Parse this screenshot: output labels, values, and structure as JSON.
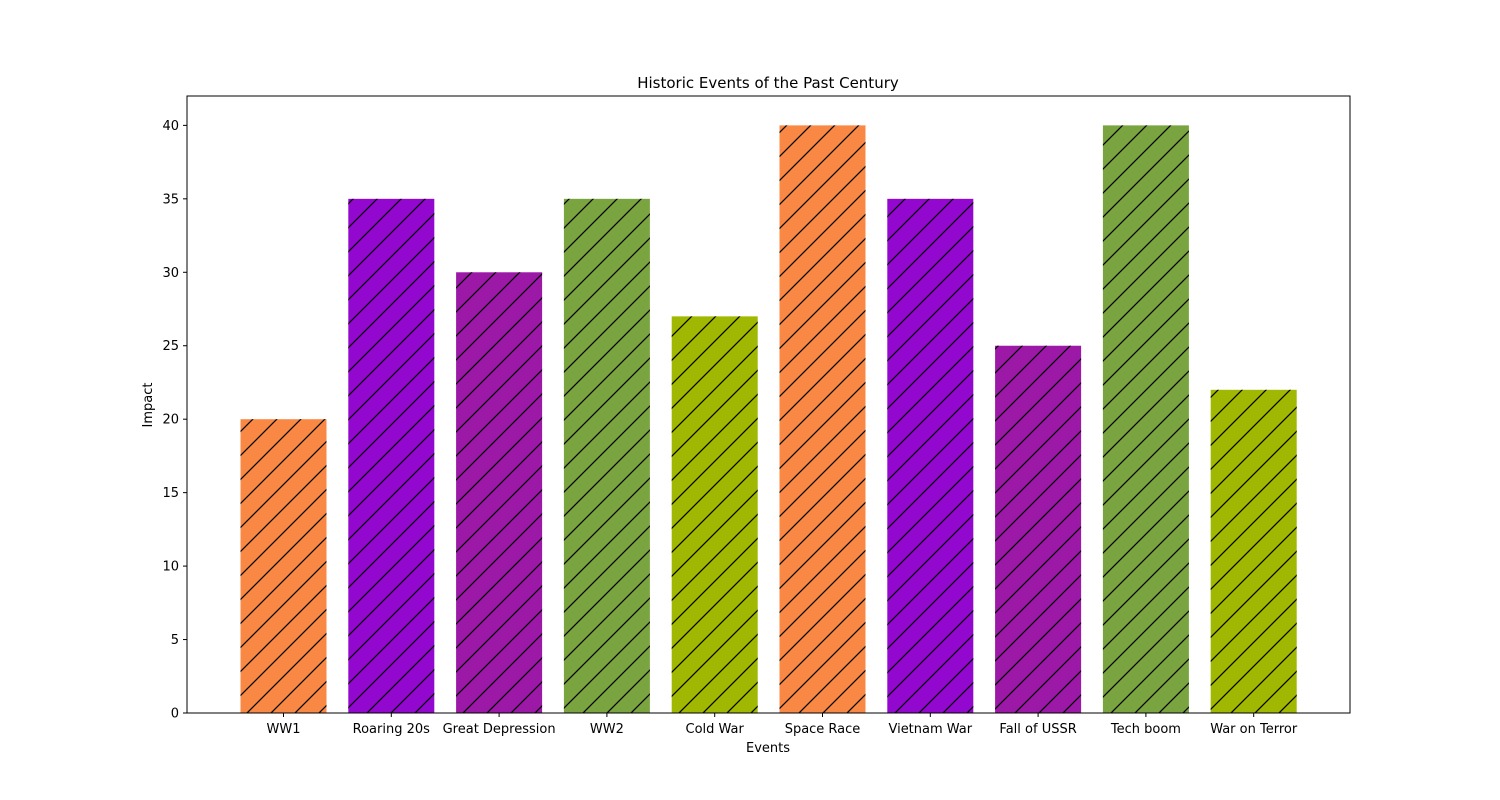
{
  "chart_data": {
    "type": "bar",
    "title": "Historic Events of the Past Century",
    "xlabel": "Events",
    "ylabel": "Impact",
    "ylim": [
      0,
      42
    ],
    "yticks": [
      0,
      5,
      10,
      15,
      20,
      25,
      30,
      35,
      40
    ],
    "grid": false,
    "categories": [
      "WW1",
      "Roaring 20s",
      "Great Depression",
      "WW2",
      "Cold War",
      "Space Race",
      "Vietnam War",
      "Fall of USSR",
      "Tech boom",
      "War on Terror"
    ],
    "values": [
      20,
      35,
      30,
      35,
      27,
      40,
      35,
      25,
      40,
      22
    ],
    "colors": [
      "#fa8845",
      "#9308cf",
      "#9c18a6",
      "#7aa43f",
      "#a1b802",
      "#fa8845",
      "#9308cf",
      "#9c18a6",
      "#7aa43f",
      "#a1b802"
    ],
    "hatch": "/"
  }
}
